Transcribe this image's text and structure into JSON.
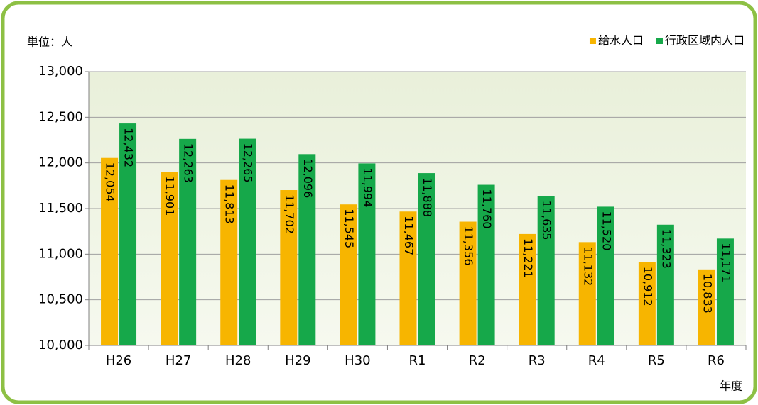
{
  "chart_data": {
    "type": "bar",
    "y_unit_label": "単位：人",
    "x_label": "年度",
    "categories": [
      "H26",
      "H27",
      "H28",
      "H29",
      "H30",
      "R1",
      "R2",
      "R3",
      "R4",
      "R5",
      "R6"
    ],
    "series": [
      {
        "name": "給水人口",
        "color": "#f7b500",
        "values": [
          12054,
          11901,
          11813,
          11702,
          11545,
          11467,
          11356,
          11221,
          11132,
          10912,
          10833
        ],
        "value_labels": [
          "12,054",
          "11,901",
          "11,813",
          "11,702",
          "11,545",
          "11,467",
          "11,356",
          "11,221",
          "11,132",
          "10,912",
          "10,833"
        ]
      },
      {
        "name": "行政区域内人口",
        "color": "#16a84a",
        "values": [
          12432,
          12263,
          12265,
          12096,
          11994,
          11888,
          11760,
          11635,
          11520,
          11323,
          11171
        ],
        "value_labels": [
          "12,432",
          "12,263",
          "12,265",
          "12,096",
          "11,994",
          "11,888",
          "11,760",
          "11,635",
          "11,520",
          "11,323",
          "11,171"
        ]
      }
    ],
    "ylim": [
      10000,
      13000
    ],
    "yticks": [
      {
        "value": 10000,
        "label": "10,000"
      },
      {
        "value": 10500,
        "label": "10,500"
      },
      {
        "value": 11000,
        "label": "11,000"
      },
      {
        "value": 11500,
        "label": "11,500"
      },
      {
        "value": 12000,
        "label": "12,000"
      },
      {
        "value": 12500,
        "label": "12,500"
      },
      {
        "value": 13000,
        "label": "13,000"
      }
    ],
    "grid": true,
    "legend": "top-right"
  }
}
